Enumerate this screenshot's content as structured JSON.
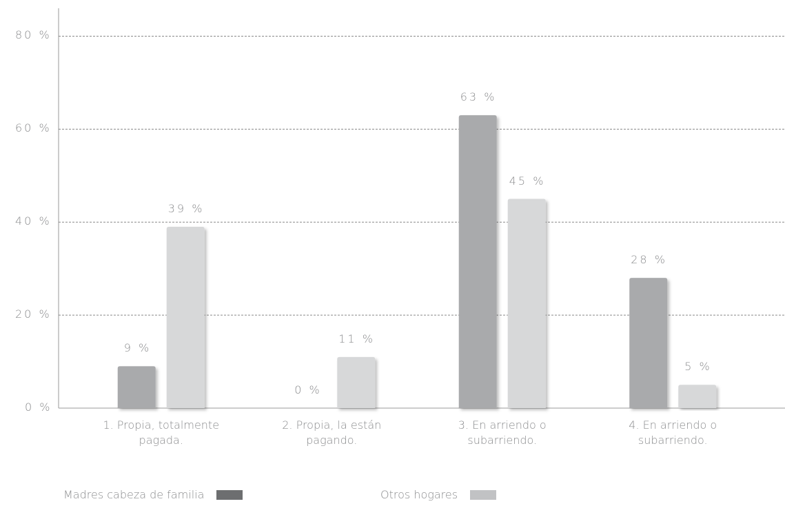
{
  "chart_data": {
    "type": "bar",
    "categories": [
      "1. Propia, totalmente pagada.",
      "2. Propia, la están pagando.",
      "3. En arriendo o subarriendo.",
      "4. En arriendo o subarriendo."
    ],
    "series": [
      {
        "name": "Madres cabeza de familia",
        "color": "#a9aaac",
        "legend_color": "#6d6e70",
        "values": [
          9,
          0,
          63,
          28
        ],
        "value_labels": [
          "9 %",
          "0 %",
          "63 %",
          "28 %"
        ]
      },
      {
        "name": "Otros hogares",
        "color": "#d7d8d9",
        "legend_color": "#c1c2c4",
        "values": [
          39,
          11,
          45,
          5
        ],
        "value_labels": [
          "39 %",
          "11 %",
          "45 %",
          "5 %"
        ]
      }
    ],
    "ylim": [
      0,
      86
    ],
    "yticks": [
      {
        "value": 0,
        "label": "0 %"
      },
      {
        "value": 20,
        "label": "20 %"
      },
      {
        "value": 40,
        "label": "40 %"
      },
      {
        "value": 60,
        "label": "60 %"
      },
      {
        "value": 80,
        "label": "80 %"
      }
    ],
    "grid": true
  }
}
